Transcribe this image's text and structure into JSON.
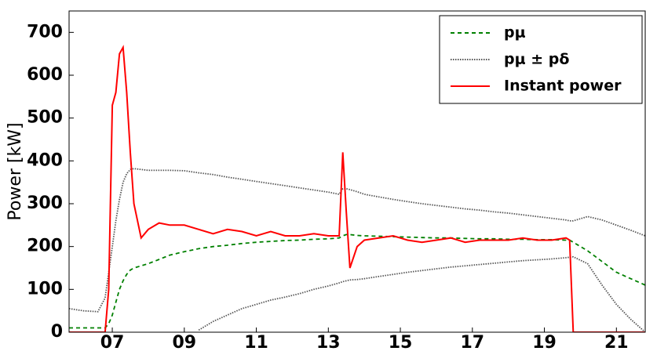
{
  "chart_data": {
    "type": "line",
    "ylabel": "Power [kW]",
    "x": [
      5.8,
      6.2,
      6.6,
      6.8,
      6.9,
      7.0,
      7.1,
      7.2,
      7.3,
      7.4,
      7.5,
      7.6,
      7.8,
      8.0,
      8.3,
      8.6,
      9.0,
      9.4,
      9.8,
      10.2,
      10.6,
      11.0,
      11.4,
      11.8,
      12.2,
      12.6,
      13.0,
      13.3,
      13.4,
      13.5,
      13.6,
      13.8,
      14.0,
      14.4,
      14.8,
      15.2,
      15.6,
      16.0,
      16.4,
      16.8,
      17.2,
      17.6,
      18.0,
      18.4,
      18.8,
      19.2,
      19.6,
      19.7,
      19.8,
      20.2,
      20.6,
      21.0,
      21.4,
      21.8
    ],
    "series": [
      {
        "name": "pμ",
        "color": "#008000",
        "dash": "dashed",
        "values": [
          10,
          10,
          10,
          10,
          20,
          40,
          70,
          100,
          120,
          135,
          145,
          150,
          155,
          160,
          170,
          180,
          188,
          195,
          200,
          203,
          207,
          210,
          212,
          214,
          215,
          217,
          218,
          220,
          225,
          228,
          228,
          226,
          225,
          224,
          223,
          222,
          221,
          220,
          220,
          219,
          218,
          218,
          217,
          217,
          216,
          216,
          215,
          215,
          210,
          190,
          165,
          140,
          125,
          110
        ]
      },
      {
        "name": "pμ ± pδ",
        "color": "#555555",
        "dash": "dotted",
        "values": [
          55,
          50,
          48,
          80,
          140,
          200,
          260,
          310,
          350,
          370,
          380,
          382,
          380,
          378,
          378,
          378,
          377,
          372,
          368,
          362,
          357,
          352,
          347,
          342,
          337,
          332,
          327,
          322,
          335,
          335,
          333,
          328,
          322,
          316,
          310,
          305,
          300,
          296,
          292,
          288,
          285,
          281,
          278,
          274,
          270,
          266,
          262,
          260,
          260,
          270,
          262,
          250,
          238,
          225
        ],
        "lower": [
          null,
          null,
          null,
          null,
          null,
          null,
          null,
          null,
          null,
          null,
          null,
          null,
          null,
          null,
          null,
          null,
          null,
          5,
          25,
          40,
          55,
          65,
          75,
          82,
          90,
          100,
          108,
          115,
          118,
          120,
          122,
          123,
          125,
          130,
          135,
          140,
          144,
          148,
          152,
          155,
          158,
          161,
          164,
          167,
          169,
          171,
          174,
          175,
          176,
          160,
          110,
          65,
          30,
          0
        ]
      },
      {
        "name": "Instant power",
        "color": "#ff0000",
        "dash": "solid",
        "values": [
          0,
          0,
          0,
          0,
          100,
          530,
          560,
          650,
          665,
          560,
          420,
          300,
          220,
          240,
          255,
          250,
          250,
          240,
          230,
          240,
          235,
          225,
          235,
          225,
          225,
          230,
          225,
          225,
          420,
          280,
          150,
          200,
          215,
          220,
          225,
          215,
          210,
          215,
          220,
          210,
          215,
          215,
          215,
          220,
          215,
          215,
          220,
          215,
          0,
          0,
          0,
          0,
          0,
          0
        ]
      }
    ],
    "xlim": [
      5.8,
      21.8
    ],
    "xticks": [
      {
        "value": 7,
        "label": "07"
      },
      {
        "value": 9,
        "label": "09"
      },
      {
        "value": 11,
        "label": "11"
      },
      {
        "value": 13,
        "label": "13"
      },
      {
        "value": 15,
        "label": "15"
      },
      {
        "value": 17,
        "label": "17"
      },
      {
        "value": 19,
        "label": "19"
      },
      {
        "value": 21,
        "label": "21"
      }
    ],
    "ylim": [
      0,
      750
    ],
    "yticks": [
      0,
      100,
      200,
      300,
      400,
      500,
      600,
      700
    ],
    "legend": "upper right"
  }
}
